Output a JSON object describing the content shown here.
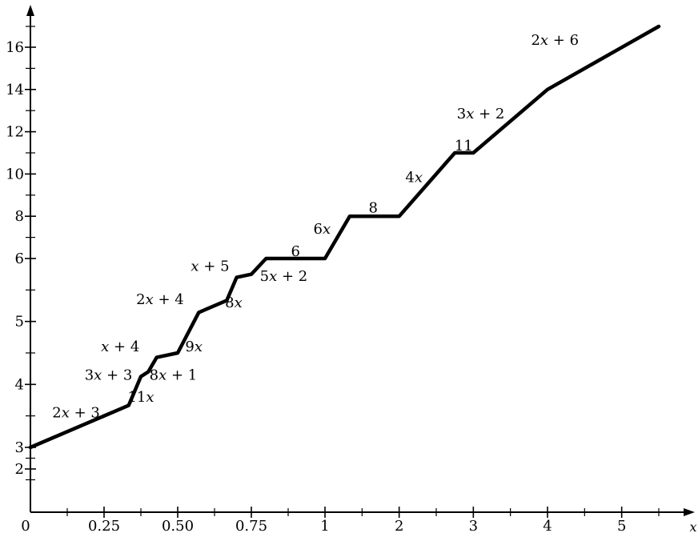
{
  "chart_data": {
    "type": "line",
    "xlabel": "x",
    "ylabel": "",
    "x_ticks": [
      {
        "value": 0,
        "label": "0"
      },
      {
        "value": 0.25,
        "label": "0.25"
      },
      {
        "value": 0.5,
        "label": "0.50"
      },
      {
        "value": 0.75,
        "label": "0.75"
      },
      {
        "value": 1,
        "label": "1"
      },
      {
        "value": 2,
        "label": "2"
      },
      {
        "value": 3,
        "label": "3"
      },
      {
        "value": 4,
        "label": "4"
      },
      {
        "value": 5,
        "label": "5"
      }
    ],
    "y_ticks": [
      {
        "value": 2,
        "label": "2"
      },
      {
        "value": 3,
        "label": "3"
      },
      {
        "value": 4,
        "label": "4"
      },
      {
        "value": 5,
        "label": "5"
      },
      {
        "value": 6,
        "label": "6"
      },
      {
        "value": 8,
        "label": "8"
      },
      {
        "value": 10,
        "label": "10"
      },
      {
        "value": 12,
        "label": "12"
      },
      {
        "value": 14,
        "label": "14"
      },
      {
        "value": 16,
        "label": "16"
      }
    ],
    "x_minor_ticks": [
      0.125,
      0.375,
      0.625,
      0.875,
      1.5,
      2.5,
      3.5,
      4.5,
      5.5
    ],
    "y_minor_ticks": [
      1.5,
      2.5,
      3.5,
      4.5,
      5.5,
      7,
      9,
      11,
      13,
      15,
      17
    ],
    "series": [
      {
        "x": [
          0,
          0.3333,
          0.375,
          0.4,
          0.4286,
          0.5,
          0.5714,
          0.6667,
          0.7,
          0.75,
          0.8,
          1,
          1.3333,
          2,
          2.75,
          3,
          4,
          5.5
        ],
        "y": [
          3,
          3.6667,
          4.125,
          4.2,
          4.4286,
          4.5,
          5.1429,
          5.3333,
          5.7,
          5.75,
          6,
          6,
          8,
          8,
          11,
          11,
          14,
          17
        ]
      }
    ],
    "annotations": [
      {
        "text": "2x + 3",
        "parts": [
          "2",
          "x",
          " + 3"
        ],
        "x": 0.155,
        "y": 3.55
      },
      {
        "text": "11x",
        "parts": [
          "11",
          "x",
          ""
        ],
        "x": 0.375,
        "y": 3.8
      },
      {
        "text": "3x + 3",
        "parts": [
          "3",
          "x",
          " + 3"
        ],
        "x": 0.265,
        "y": 4.15
      },
      {
        "text": "8x + 1",
        "parts": [
          "8",
          "x",
          " + 1"
        ],
        "x": 0.485,
        "y": 4.15
      },
      {
        "text": "x + 4",
        "parts": [
          "",
          "x",
          " + 4"
        ],
        "x": 0.305,
        "y": 4.6
      },
      {
        "text": "9x",
        "parts": [
          "9",
          "x",
          ""
        ],
        "x": 0.555,
        "y": 4.6
      },
      {
        "text": "2x + 4",
        "parts": [
          "2",
          "x",
          " + 4"
        ],
        "x": 0.44,
        "y": 5.35
      },
      {
        "text": "8x",
        "parts": [
          "8",
          "x",
          ""
        ],
        "x": 0.69,
        "y": 5.3
      },
      {
        "text": "x + 5",
        "parts": [
          "",
          "x",
          " + 5"
        ],
        "x": 0.61,
        "y": 5.88
      },
      {
        "text": "5x + 2",
        "parts": [
          "5",
          "x",
          " + 2"
        ],
        "x": 0.86,
        "y": 5.72
      },
      {
        "text": "6",
        "parts": [
          "6",
          "",
          ""
        ],
        "x": 0.9,
        "y": 6.35
      },
      {
        "text": "6x",
        "parts": [
          "6",
          "x",
          ""
        ],
        "x": 0.99,
        "y": 7.4
      },
      {
        "text": "8",
        "parts": [
          "8",
          "",
          ""
        ],
        "x": 1.65,
        "y": 8.4
      },
      {
        "text": "4x",
        "parts": [
          "4",
          "x",
          ""
        ],
        "x": 2.2,
        "y": 9.85
      },
      {
        "text": "11",
        "parts": [
          "11",
          "",
          ""
        ],
        "x": 2.87,
        "y": 11.35
      },
      {
        "text": "3x + 2",
        "parts": [
          "3",
          "x",
          " + 2"
        ],
        "x": 3.1,
        "y": 12.85
      },
      {
        "text": "2x + 6",
        "parts": [
          "2",
          "x",
          " + 6"
        ],
        "x": 4.1,
        "y": 16.35
      }
    ],
    "grid": false,
    "legend": "none"
  }
}
